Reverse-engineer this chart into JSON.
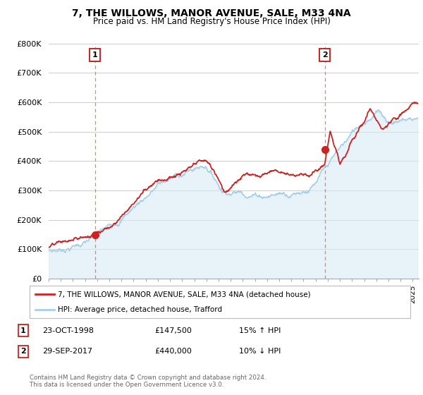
{
  "title": "7, THE WILLOWS, MANOR AVENUE, SALE, M33 4NA",
  "subtitle": "Price paid vs. HM Land Registry's House Price Index (HPI)",
  "ylabel_ticks": [
    "£0",
    "£100K",
    "£200K",
    "£300K",
    "£400K",
    "£500K",
    "£600K",
    "£700K",
    "£800K"
  ],
  "ylim": [
    0,
    800000
  ],
  "xlim_start": 1995.0,
  "xlim_end": 2025.5,
  "purchase1_x": 1998.81,
  "purchase1_y": 147500,
  "purchase2_x": 2017.75,
  "purchase2_y": 440000,
  "legend_line1": "7, THE WILLOWS, MANOR AVENUE, SALE, M33 4NA (detached house)",
  "legend_line2": "HPI: Average price, detached house, Trafford",
  "table_row1": [
    "1",
    "23-OCT-1998",
    "£147,500",
    "15% ↑ HPI"
  ],
  "table_row2": [
    "2",
    "29-SEP-2017",
    "£440,000",
    "10% ↓ HPI"
  ],
  "footer": "Contains HM Land Registry data © Crown copyright and database right 2024.\nThis data is licensed under the Open Government Licence v3.0.",
  "hpi_color": "#a8cfe8",
  "hpi_fill_color": "#daeaf5",
  "price_color": "#cc2222",
  "vline_color": "#e08080",
  "dot_color": "#cc2222",
  "background_color": "#FFFFFF",
  "grid_color": "#cccccc",
  "box_bg": "#FFFFFF",
  "box_edge": "#cc2222"
}
